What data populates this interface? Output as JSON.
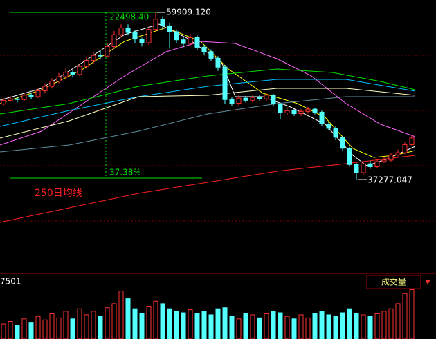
{
  "chart_data": [
    {
      "type": "candlestick",
      "up_color": "#ff3232",
      "down_color": "#54ffff",
      "ylim": [
        25100,
        61600
      ],
      "open": [
        47500,
        48000,
        48200,
        48100,
        48700,
        48500,
        49300,
        49900,
        50600,
        51200,
        51800,
        51500,
        52600,
        53400,
        54100,
        54000,
        55300,
        56900,
        57800,
        57200,
        56300,
        55800,
        57600,
        59000,
        58100,
        57300,
        56200,
        55700,
        56500,
        55200,
        54600,
        53700,
        52500,
        48100,
        47600,
        48300,
        48000,
        48400,
        48200,
        48700,
        47500,
        46300,
        46600,
        46200,
        46500,
        46800,
        46400,
        44800,
        44200,
        43000,
        41500,
        39300,
        38200,
        39400,
        39000,
        39700,
        39900,
        40600,
        40900,
        42000
      ],
      "close": [
        48000,
        48200,
        48100,
        48700,
        48500,
        49300,
        49900,
        50600,
        51200,
        51800,
        51500,
        52600,
        53400,
        54100,
        54000,
        55300,
        56900,
        57800,
        57200,
        56300,
        55800,
        57600,
        59000,
        58100,
        57300,
        56200,
        55700,
        56500,
        55200,
        54600,
        53700,
        52500,
        48100,
        47600,
        48300,
        48000,
        48400,
        48200,
        48700,
        47500,
        46300,
        46600,
        46200,
        46500,
        46800,
        46400,
        44800,
        44200,
        43000,
        41500,
        39300,
        38200,
        39400,
        39000,
        39700,
        39900,
        40600,
        40900,
        42000,
        42900
      ],
      "high": [
        48300,
        48600,
        48500,
        49000,
        49100,
        49600,
        50300,
        51000,
        51700,
        52300,
        52100,
        53000,
        53900,
        54500,
        54800,
        55800,
        57400,
        58300,
        58300,
        57500,
        56500,
        58000,
        59909.12,
        59400,
        58500,
        57600,
        56600,
        57000,
        56800,
        55500,
        54900,
        54000,
        52800,
        48500,
        48700,
        48600,
        48800,
        48700,
        49000,
        48900,
        47700,
        46900,
        46800,
        46800,
        47100,
        47000,
        46600,
        45100,
        44500,
        43200,
        41700,
        39500,
        39700,
        39800,
        40000,
        40300,
        40900,
        41300,
        42300,
        43300
      ],
      "low": [
        47200,
        47800,
        47700,
        47900,
        48200,
        48300,
        49000,
        49600,
        50300,
        50900,
        51100,
        51300,
        52300,
        53000,
        53600,
        53800,
        55000,
        56500,
        56800,
        55800,
        55300,
        55500,
        57300,
        57600,
        55000,
        55800,
        55200,
        55400,
        54800,
        54100,
        53300,
        52000,
        47500,
        47200,
        47300,
        47700,
        47700,
        47900,
        47900,
        47200,
        45400,
        46000,
        45900,
        45900,
        46200,
        46100,
        44500,
        43900,
        42600,
        41200,
        39000,
        37277.047,
        37900,
        38700,
        38800,
        39500,
        39700,
        40400,
        40700,
        41800
      ],
      "lines": [
        {
          "color": "#ffffff",
          "x": [
            -0.5,
            5.5,
            11.5,
            17.5,
            22.5,
            26.5,
            31.5,
            33.5,
            37.5,
            41.5,
            46.5,
            50.5,
            52.5,
            55.5,
            59.5
          ],
          "values": [
            48028,
            49619,
            53176,
            56920,
            58324,
            56452,
            53176,
            48496,
            48496,
            47092,
            44752,
            40540,
            39136,
            40072,
            41757
          ]
        },
        {
          "color": "#ffff00",
          "x": [
            -0.5,
            5.5,
            11.5,
            17.5,
            23.5,
            28.5,
            32.5,
            37.5,
            42.5,
            46.5,
            50.5,
            53.5,
            56.5,
            59.5
          ],
          "values": [
            47560,
            49432,
            52240,
            55984,
            57856,
            55984,
            52240,
            48964,
            47560,
            45688,
            41476,
            40259,
            40540,
            41195
          ]
        },
        {
          "color": "#ff66ff",
          "x": [
            -0.5,
            5.5,
            11.5,
            17.5,
            23.5,
            28.5,
            33.5,
            39.5,
            44.5,
            49.5,
            54.5,
            59.5
          ],
          "values": [
            41944,
            43816,
            47560,
            51304,
            54580,
            55984,
            55703,
            53644,
            51304,
            47560,
            44752,
            43067
          ]
        },
        {
          "color": "#00e000",
          "x": [
            -0.5,
            9.5,
            19.5,
            29.5,
            39.5,
            47.5,
            54.5,
            59.5
          ],
          "values": [
            46156,
            47560,
            49900,
            51304,
            52240,
            51772,
            50555,
            49432
          ]
        },
        {
          "color": "#00c0ff",
          "x": [
            -0.5,
            9.5,
            19.5,
            29.5,
            39.5,
            49.5,
            59.5
          ],
          "values": [
            44471,
            46624,
            48496,
            49900,
            50836,
            50836,
            49245
          ]
        },
        {
          "color": "#ffffc0",
          "x": [
            -0.5,
            9.5,
            19.5,
            29.5,
            39.5,
            49.5,
            59.5
          ],
          "values": [
            42880,
            45220,
            48496,
            48683,
            49619,
            49619,
            48683
          ]
        },
        {
          "color": "#5f8fa0",
          "x": [
            -0.5,
            9.5,
            19.5,
            29.5,
            39.5,
            49.5,
            59.5
          ],
          "values": [
            41008,
            41944,
            43816,
            46156,
            47560,
            48496,
            48496
          ]
        },
        {
          "color": "#ff2020",
          "x": [
            -0.5,
            19.5,
            39.5,
            49.5,
            59.5
          ],
          "values": [
            31461,
            35392,
            38387,
            39417,
            40540
          ]
        }
      ],
      "annotations": [
        "22498.40",
        "59909.120",
        "37.38%",
        "37277.047",
        "250日均线"
      ]
    },
    {
      "type": "bar",
      "label": "7501",
      "indicator": "成交量",
      "ylim": [
        0,
        100
      ],
      "values": [
        30,
        35,
        28,
        40,
        32,
        45,
        38,
        50,
        42,
        55,
        40,
        60,
        48,
        55,
        45,
        62,
        70,
        95,
        80,
        60,
        50,
        65,
        75,
        70,
        60,
        55,
        52,
        58,
        50,
        55,
        48,
        60,
        62,
        45,
        40,
        50,
        48,
        42,
        50,
        55,
        52,
        45,
        40,
        48,
        42,
        50,
        55,
        48,
        45,
        52,
        60,
        50,
        48,
        45,
        50,
        55,
        60,
        70,
        90,
        98
      ]
    }
  ]
}
